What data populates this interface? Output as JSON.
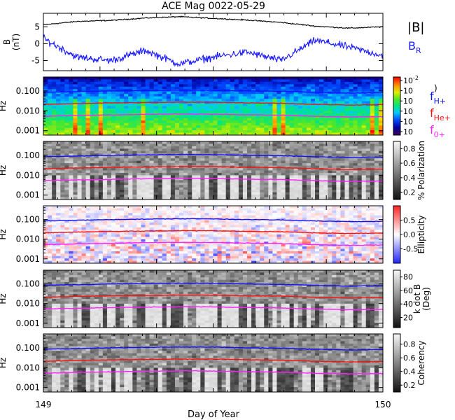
{
  "title": "ACE Mag 0022-05-29",
  "x_axis": {
    "label": "Day of Year",
    "start_label": "149",
    "end_label": "150"
  },
  "colors": {
    "bmag": "#000000",
    "br": "#1a1aff",
    "fh": "#1010ff",
    "fhe": "#ff1010",
    "fo": "#ff20ff"
  },
  "line_legend": {
    "bmag": "|B|",
    "br_base": "B",
    "br_sub": "R",
    "fh_base": "f",
    "fh_sub": "H+",
    "fhe_base": "f",
    "fhe_sub": "He+",
    "fo_base": "f",
    "fo_sub": "0+"
  },
  "chart_data": [
    {
      "type": "line",
      "panel": "magnetic-field",
      "ylabel": "B (nT)",
      "ylim": [
        -8,
        9
      ],
      "y_ticks": [
        "5",
        "0",
        "-5"
      ],
      "y_tick_values": [
        5,
        0,
        -5
      ],
      "x": [
        149.0,
        149.1,
        149.2,
        149.3,
        149.4,
        149.5,
        149.6,
        149.7,
        149.8,
        149.9,
        150.0
      ],
      "series": [
        {
          "name": "|B|",
          "values": [
            5.6,
            6.6,
            6.9,
            7.6,
            8.0,
            7.5,
            7.0,
            6.3,
            5.2,
            4.6,
            5.0
          ]
        },
        {
          "name": "BR",
          "values": [
            1.5,
            -4.0,
            -5.0,
            -2.0,
            -6.0,
            -4.0,
            -2.5,
            -5.0,
            1.0,
            -1.0,
            -3.5
          ]
        }
      ]
    },
    {
      "type": "heatmap",
      "panel": "power-spectrum",
      "ylabel": "Hz",
      "y_scale": "log",
      "ylim": [
        0.0006,
        0.5
      ],
      "y_ticks": [
        "0.100",
        "0.010",
        "0.001"
      ],
      "colorbar": {
        "ticks": [
          "10",
          "10",
          "10",
          "10",
          "10",
          "10"
        ],
        "top_label": "-2",
        "unit": ")"
      },
      "overlay_series": [
        {
          "name": "fH+",
          "values": [
            0.085,
            0.092,
            0.1,
            0.105,
            0.11,
            0.108,
            0.1,
            0.095,
            0.085,
            0.078,
            0.082
          ]
        },
        {
          "name": "fHe+",
          "values": [
            0.021,
            0.023,
            0.025,
            0.026,
            0.027,
            0.027,
            0.025,
            0.024,
            0.021,
            0.0195,
            0.0205
          ]
        },
        {
          "name": "f0+",
          "values": [
            0.0053,
            0.0058,
            0.0062,
            0.0066,
            0.0069,
            0.0068,
            0.0063,
            0.006,
            0.0053,
            0.0049,
            0.0051
          ]
        }
      ]
    },
    {
      "type": "heatmap",
      "panel": "polarization",
      "ylabel": "Hz",
      "y_scale": "log",
      "y_ticks": [
        "0.100",
        "0.010",
        "0.001"
      ],
      "colorbar": {
        "label": "% Polarization",
        "ticks": [
          "0.8",
          "0.6",
          "0.4",
          "0.2"
        ],
        "range": [
          0.1,
          0.9
        ]
      }
    },
    {
      "type": "heatmap",
      "panel": "ellipticity",
      "ylabel": "Hz",
      "y_scale": "log",
      "y_ticks": [
        "0.100",
        "0.010",
        "0.001"
      ],
      "colorbar": {
        "label": "Ellipticity",
        "ticks": [
          "0.5",
          "0.0",
          "-0.5"
        ],
        "range": [
          -1,
          1
        ]
      }
    },
    {
      "type": "heatmap",
      "panel": "k-dot-b",
      "ylabel": "Hz",
      "y_scale": "log",
      "y_ticks": [
        "0.100",
        "0.010",
        "0.001"
      ],
      "colorbar": {
        "label": "k dot B",
        "label2": "(Deg)",
        "ticks": [
          "80",
          "60",
          "40",
          "20"
        ],
        "range": [
          5,
          90
        ]
      }
    },
    {
      "type": "heatmap",
      "panel": "coherency",
      "ylabel": "Hz",
      "y_scale": "log",
      "y_ticks": [
        "0.100",
        "0.010",
        "0.001"
      ],
      "colorbar": {
        "label": "Coherency",
        "ticks": [
          "0.8",
          "0.6",
          "0.4",
          "0.2"
        ],
        "range": [
          0.1,
          0.95
        ]
      }
    }
  ]
}
